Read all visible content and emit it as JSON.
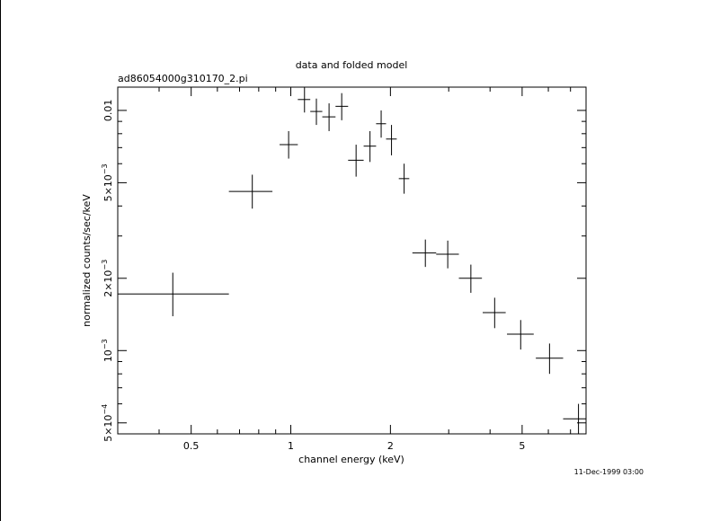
{
  "chart_data": {
    "type": "scatter",
    "title": "data and folded model",
    "subtitle": "ad86054000g310170_2.pi",
    "xlabel": "channel energy (keV)",
    "ylabel": "normalized counts/sec/keV",
    "x_scale": "log",
    "y_scale": "log",
    "xlim": [
      0.3,
      7.8
    ],
    "ylim": [
      0.00045,
      0.0125
    ],
    "x_ticks": [
      {
        "value": 0.5,
        "label": "0.5"
      },
      {
        "value": 1,
        "label": "1"
      },
      {
        "value": 2,
        "label": "2"
      },
      {
        "value": 5,
        "label": "5"
      }
    ],
    "y_ticks": [
      {
        "value": 0.01,
        "base": "0.01",
        "exp": ""
      },
      {
        "value": 0.005,
        "base": "5×10",
        "exp": "−3"
      },
      {
        "value": 0.002,
        "base": "2×10",
        "exp": "−3"
      },
      {
        "value": 0.001,
        "base": "10",
        "exp": "−3"
      },
      {
        "value": 0.0005,
        "base": "5×10",
        "exp": "−4"
      }
    ],
    "series": [
      {
        "points": [
          {
            "x": 0.44,
            "xlo": 0.3,
            "xhi": 0.65,
            "y": 0.00172,
            "ylo": 0.00139,
            "yhi": 0.00211
          },
          {
            "x": 0.765,
            "xlo": 0.65,
            "xhi": 0.88,
            "y": 0.0046,
            "ylo": 0.0039,
            "yhi": 0.0054
          },
          {
            "x": 0.985,
            "xlo": 0.925,
            "xhi": 1.05,
            "y": 0.0072,
            "ylo": 0.0063,
            "yhi": 0.0082
          },
          {
            "x": 1.1,
            "xlo": 1.05,
            "xhi": 1.145,
            "y": 0.0111,
            "ylo": 0.0098,
            "yhi": 0.0125
          },
          {
            "x": 1.195,
            "xlo": 1.145,
            "xhi": 1.245,
            "y": 0.0099,
            "ylo": 0.0087,
            "yhi": 0.0112
          },
          {
            "x": 1.305,
            "xlo": 1.245,
            "xhi": 1.365,
            "y": 0.0094,
            "ylo": 0.0082,
            "yhi": 0.0107
          },
          {
            "x": 1.425,
            "xlo": 1.365,
            "xhi": 1.49,
            "y": 0.0104,
            "ylo": 0.0091,
            "yhi": 0.0118
          },
          {
            "x": 1.575,
            "xlo": 1.49,
            "xhi": 1.66,
            "y": 0.0062,
            "ylo": 0.0053,
            "yhi": 0.0072
          },
          {
            "x": 1.735,
            "xlo": 1.66,
            "xhi": 1.81,
            "y": 0.0071,
            "ylo": 0.0061,
            "yhi": 0.0082
          },
          {
            "x": 1.875,
            "xlo": 1.81,
            "xhi": 1.94,
            "y": 0.0088,
            "ylo": 0.0077,
            "yhi": 0.01
          },
          {
            "x": 2.015,
            "xlo": 1.94,
            "xhi": 2.09,
            "y": 0.0076,
            "ylo": 0.0065,
            "yhi": 0.0087
          },
          {
            "x": 2.2,
            "xlo": 2.12,
            "xhi": 2.28,
            "y": 0.0052,
            "ylo": 0.0045,
            "yhi": 0.006
          },
          {
            "x": 2.55,
            "xlo": 2.33,
            "xhi": 2.75,
            "y": 0.00255,
            "ylo": 0.00223,
            "yhi": 0.0029
          },
          {
            "x": 2.98,
            "xlo": 2.75,
            "xhi": 3.22,
            "y": 0.00252,
            "ylo": 0.0022,
            "yhi": 0.00287
          },
          {
            "x": 3.5,
            "xlo": 3.22,
            "xhi": 3.78,
            "y": 0.002,
            "ylo": 0.00174,
            "yhi": 0.00228
          },
          {
            "x": 4.13,
            "xlo": 3.8,
            "xhi": 4.46,
            "y": 0.00144,
            "ylo": 0.00124,
            "yhi": 0.00166
          },
          {
            "x": 4.95,
            "xlo": 4.5,
            "xhi": 5.42,
            "y": 0.00117,
            "ylo": 0.00101,
            "yhi": 0.00134
          },
          {
            "x": 6.05,
            "xlo": 5.5,
            "xhi": 6.65,
            "y": 0.00093,
            "ylo": 0.0008,
            "yhi": 0.00107
          },
          {
            "x": 7.4,
            "xlo": 6.65,
            "xhi": 7.8,
            "y": 0.00052,
            "ylo": 0.00044,
            "yhi": 0.0006
          }
        ]
      }
    ],
    "grid": false,
    "legend": "none"
  },
  "timestamp": "11-Dec-1999 03:00"
}
